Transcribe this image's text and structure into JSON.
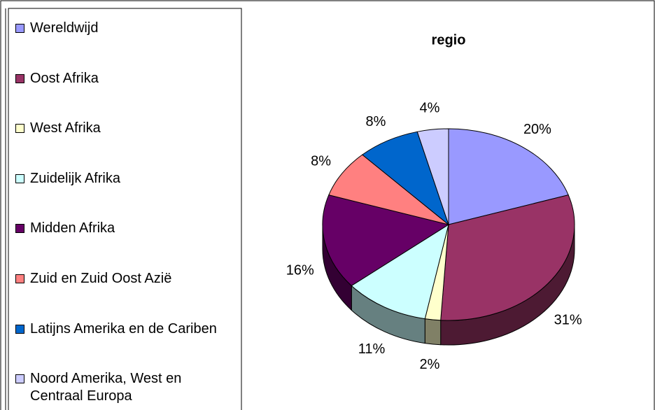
{
  "chart_data": {
    "type": "pie",
    "title": "regio",
    "categories": [
      "Wereldwijd",
      "Oost Afrika",
      "West Afrika",
      "Zuidelijk Afrika",
      "Midden Afrika",
      "Zuid en Zuid Oost Azië",
      "Latijns Amerika en de Cariben",
      "Noord Amerika, West en Centraal Europa"
    ],
    "values": [
      20,
      31,
      2,
      11,
      16,
      8,
      8,
      4
    ],
    "value_labels": [
      "20%",
      "31%",
      "2%",
      "11%",
      "16%",
      "8%",
      "8%",
      "4%"
    ],
    "colors": [
      "#9999ff",
      "#993366",
      "#ffffcc",
      "#ccffff",
      "#660066",
      "#ff8080",
      "#0066cc",
      "#ccccff"
    ],
    "legend": "left"
  }
}
